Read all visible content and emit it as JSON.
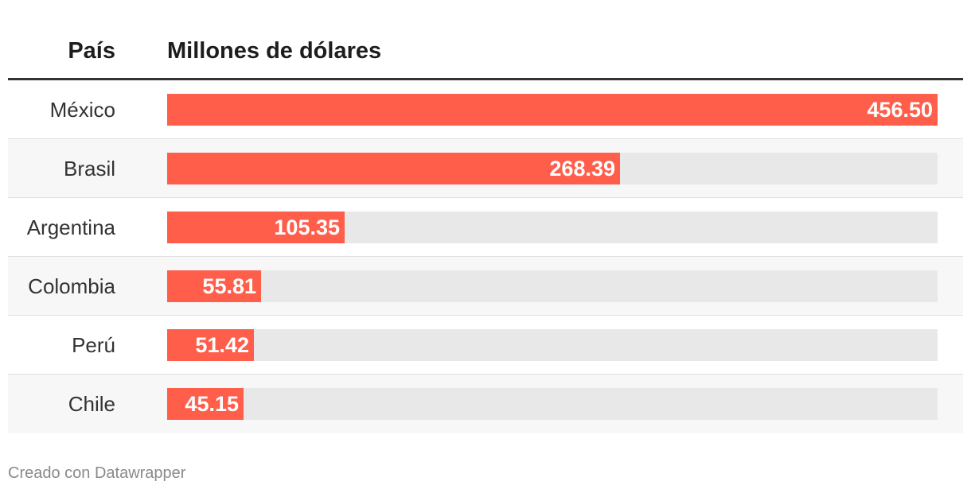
{
  "chart_data": {
    "type": "table",
    "columns": {
      "country": "País",
      "value": "Millones de dólares"
    },
    "rows": [
      {
        "country": "México",
        "value": 456.5,
        "label": "456.50"
      },
      {
        "country": "Brasil",
        "value": 268.39,
        "label": "268.39"
      },
      {
        "country": "Argentina",
        "value": 105.35,
        "label": "105.35"
      },
      {
        "country": "Colombia",
        "value": 55.81,
        "label": "55.81"
      },
      {
        "country": "Perú",
        "value": 51.42,
        "label": "51.42"
      },
      {
        "country": "Chile",
        "value": 45.15,
        "label": "45.15"
      }
    ],
    "max": 456.5,
    "bar_color": "#ff5e4b",
    "track_color": "#e8e8e8"
  },
  "footer": {
    "credit": "Creado con Datawrapper"
  }
}
